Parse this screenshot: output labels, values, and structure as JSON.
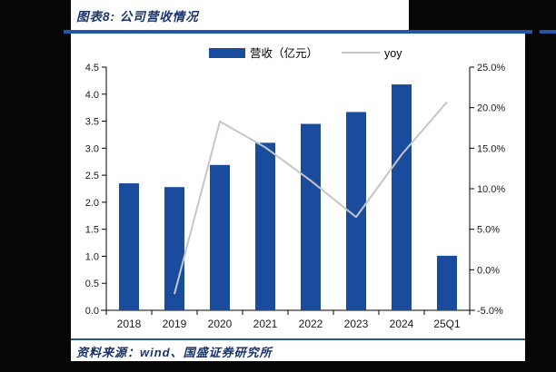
{
  "page": {
    "title": "图表8: 公司营收情况",
    "source": "资料来源：wind、国盛证券研究所"
  },
  "chart_data": {
    "type": "bar",
    "title": "",
    "categories": [
      "2018",
      "2019",
      "2020",
      "2021",
      "2022",
      "2023",
      "2024",
      "25Q1"
    ],
    "series": [
      {
        "name": "营收（亿元）",
        "type": "bar",
        "axis": "left",
        "values": [
          2.35,
          2.28,
          2.69,
          3.1,
          3.45,
          3.67,
          4.18,
          1.01
        ]
      },
      {
        "name": "yoy",
        "type": "line",
        "axis": "right",
        "values": [
          null,
          -3.0,
          18.3,
          15.1,
          11.0,
          6.5,
          14.2,
          20.7
        ]
      }
    ],
    "left_axis": {
      "min": 0,
      "max": 4.5,
      "step": 0.5,
      "labels": [
        "0.0",
        "0.5",
        "1.0",
        "1.5",
        "2.0",
        "2.5",
        "3.0",
        "3.5",
        "4.0",
        "4.5"
      ]
    },
    "right_axis": {
      "min": -5,
      "max": 25,
      "step": 5,
      "labels": [
        "-5.0%",
        "0.0%",
        "5.0%",
        "10.0%",
        "15.0%",
        "20.0%",
        "25.0%"
      ]
    },
    "legend": [
      "营收（亿元）",
      "yoy"
    ],
    "legend_position": "top",
    "grid": false,
    "colors": {
      "bar": "#1a4c9d",
      "line": "#c6c6c6",
      "axis": "#000000",
      "rule": "#2257a7",
      "title_text": "#17336b"
    }
  }
}
